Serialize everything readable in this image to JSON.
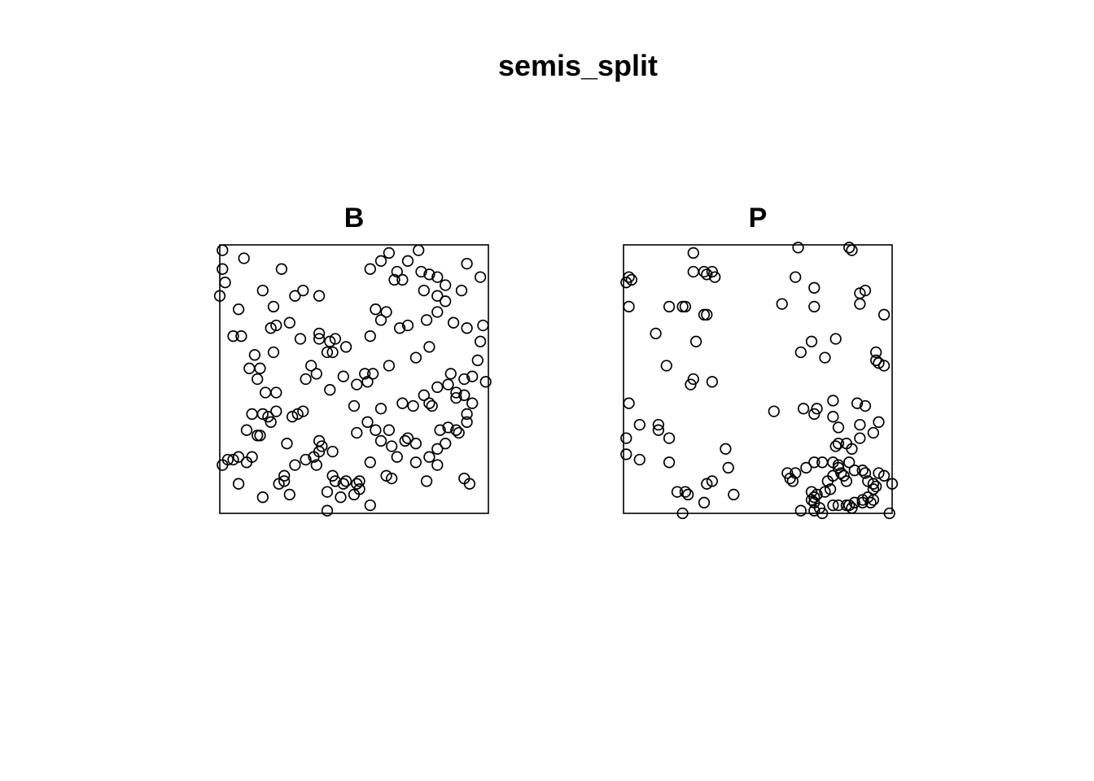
{
  "title": "semis_split",
  "chart_data": {
    "type": "scatter",
    "title": "semis_split",
    "xlim": [
      0,
      100
    ],
    "ylim": [
      0,
      100
    ],
    "axes": false,
    "grid": false,
    "point_style": "open-circle",
    "point_color": "#000000",
    "panels": [
      {
        "name": "B",
        "points": [
          [
            1,
            98
          ],
          [
            1,
            91
          ],
          [
            2,
            86
          ],
          [
            0,
            81
          ],
          [
            7,
            76
          ],
          [
            9,
            95
          ],
          [
            23,
            91
          ],
          [
            16,
            83
          ],
          [
            20,
            77
          ],
          [
            31,
            83
          ],
          [
            28,
            81
          ],
          [
            37,
            81
          ],
          [
            19,
            69
          ],
          [
            21,
            70
          ],
          [
            26,
            71
          ],
          [
            8,
            66
          ],
          [
            5,
            66
          ],
          [
            13,
            59
          ],
          [
            11,
            54
          ],
          [
            15,
            54
          ],
          [
            20,
            60
          ],
          [
            14,
            50
          ],
          [
            17,
            45
          ],
          [
            21,
            45
          ],
          [
            30,
            65
          ],
          [
            37,
            65
          ],
          [
            41,
            64
          ],
          [
            37,
            67
          ],
          [
            40,
            60
          ],
          [
            43,
            65
          ],
          [
            47,
            62
          ],
          [
            34,
            55
          ],
          [
            36,
            52
          ],
          [
            32,
            50
          ],
          [
            42,
            60
          ],
          [
            29,
            37
          ],
          [
            31,
            38
          ],
          [
            21,
            38
          ],
          [
            12,
            37
          ],
          [
            16,
            37
          ],
          [
            15,
            29
          ],
          [
            18,
            36
          ],
          [
            19,
            34
          ],
          [
            14,
            29
          ],
          [
            10,
            31
          ],
          [
            27,
            36
          ],
          [
            25,
            26
          ],
          [
            37,
            27
          ],
          [
            28,
            18
          ],
          [
            37,
            23
          ],
          [
            38,
            25
          ],
          [
            42,
            23
          ],
          [
            36,
            18
          ],
          [
            35,
            21
          ],
          [
            32,
            20
          ],
          [
            24,
            14
          ],
          [
            22,
            11
          ],
          [
            10,
            19
          ],
          [
            7,
            21
          ],
          [
            5,
            20
          ],
          [
            3,
            20
          ],
          [
            1,
            18
          ],
          [
            7,
            11
          ],
          [
            12,
            21
          ],
          [
            16,
            6
          ],
          [
            24,
            12
          ],
          [
            26,
            7
          ],
          [
            40,
            8
          ],
          [
            40,
            1
          ],
          [
            45,
            6
          ],
          [
            43,
            12
          ],
          [
            46,
            11
          ],
          [
            47,
            12
          ],
          [
            51,
            11
          ],
          [
            56,
            3
          ],
          [
            52,
            12
          ],
          [
            56,
            19
          ],
          [
            62,
            14
          ],
          [
            64,
            13
          ],
          [
            50,
            7
          ],
          [
            42,
            14
          ],
          [
            52,
            9
          ],
          [
            66,
            21
          ],
          [
            69,
            27
          ],
          [
            73,
            26
          ],
          [
            70,
            28
          ],
          [
            64,
            25
          ],
          [
            58,
            31
          ],
          [
            60,
            39
          ],
          [
            55,
            34
          ],
          [
            63,
            31
          ],
          [
            60,
            27
          ],
          [
            51,
            30
          ],
          [
            50,
            40
          ],
          [
            41,
            46
          ],
          [
            46,
            51
          ],
          [
            51,
            48
          ],
          [
            57,
            52
          ],
          [
            63,
            55
          ],
          [
            54,
            52
          ],
          [
            55,
            49
          ],
          [
            68,
            41
          ],
          [
            72,
            40
          ],
          [
            78,
            41
          ],
          [
            79,
            40
          ],
          [
            76,
            44
          ],
          [
            81,
            47
          ],
          [
            85,
            48
          ],
          [
            88,
            45
          ],
          [
            86,
            52
          ],
          [
            91,
            50
          ],
          [
            94,
            51
          ],
          [
            94,
            41
          ],
          [
            88,
            43
          ],
          [
            91,
            44
          ],
          [
            92,
            37
          ],
          [
            92,
            34
          ],
          [
            89,
            30
          ],
          [
            88,
            31
          ],
          [
            85,
            32
          ],
          [
            82,
            31
          ],
          [
            84,
            26
          ],
          [
            81,
            24
          ],
          [
            78,
            21
          ],
          [
            81,
            18
          ],
          [
            91,
            13
          ],
          [
            93,
            11
          ],
          [
            73,
            19
          ],
          [
            77,
            12
          ],
          [
            78,
            62
          ],
          [
            73,
            58
          ],
          [
            70,
            70
          ],
          [
            77,
            72
          ],
          [
            81,
            75
          ],
          [
            84,
            79
          ],
          [
            81,
            81
          ],
          [
            76,
            83
          ],
          [
            84,
            85
          ],
          [
            87,
            71
          ],
          [
            92,
            69
          ],
          [
            97,
            64
          ],
          [
            96,
            57
          ],
          [
            99,
            49
          ],
          [
            98,
            70
          ],
          [
            97,
            88
          ],
          [
            92,
            93
          ],
          [
            90,
            83
          ],
          [
            75,
            90
          ],
          [
            78,
            89
          ],
          [
            81,
            88
          ],
          [
            70,
            94
          ],
          [
            65,
            87
          ],
          [
            68,
            87
          ],
          [
            74,
            98
          ],
          [
            66,
            90
          ],
          [
            63,
            97
          ],
          [
            60,
            94
          ],
          [
            56,
            91
          ],
          [
            58,
            76
          ],
          [
            56,
            66
          ],
          [
            60,
            72
          ],
          [
            62,
            75
          ],
          [
            67,
            69
          ]
        ]
      },
      {
        "name": "P",
        "points": [
          [
            26,
            97
          ],
          [
            26,
            90
          ],
          [
            30,
            90
          ],
          [
            33,
            90
          ],
          [
            34,
            88
          ],
          [
            31,
            89
          ],
          [
            2,
            88
          ],
          [
            1,
            86
          ],
          [
            3,
            87
          ],
          [
            2,
            77
          ],
          [
            17,
            77
          ],
          [
            23,
            77
          ],
          [
            31,
            74
          ],
          [
            22,
            77
          ],
          [
            30,
            74
          ],
          [
            12,
            67
          ],
          [
            27,
            64
          ],
          [
            16,
            55
          ],
          [
            26,
            50
          ],
          [
            25,
            48
          ],
          [
            33,
            49
          ],
          [
            65,
            99
          ],
          [
            84,
            99
          ],
          [
            85,
            98
          ],
          [
            64,
            88
          ],
          [
            71,
            84
          ],
          [
            71,
            77
          ],
          [
            59,
            78
          ],
          [
            88,
            82
          ],
          [
            90,
            83
          ],
          [
            97,
            74
          ],
          [
            88,
            78
          ],
          [
            70,
            64
          ],
          [
            79,
            65
          ],
          [
            66,
            60
          ],
          [
            75,
            58
          ],
          [
            94,
            60
          ],
          [
            94,
            57
          ],
          [
            95,
            56
          ],
          [
            97,
            55
          ],
          [
            2,
            41
          ],
          [
            6,
            33
          ],
          [
            13,
            33
          ],
          [
            13,
            31
          ],
          [
            17,
            28
          ],
          [
            1,
            28
          ],
          [
            1,
            22
          ],
          [
            6,
            20
          ],
          [
            17,
            19
          ],
          [
            56,
            38
          ],
          [
            67,
            39
          ],
          [
            71,
            37
          ],
          [
            72,
            39
          ],
          [
            78,
            42
          ],
          [
            87,
            41
          ],
          [
            90,
            40
          ],
          [
            78,
            36
          ],
          [
            88,
            33
          ],
          [
            95,
            34
          ],
          [
            93,
            30
          ],
          [
            88,
            28
          ],
          [
            80,
            32
          ],
          [
            79,
            25
          ],
          [
            83,
            26
          ],
          [
            78,
            19
          ],
          [
            80,
            17
          ],
          [
            74,
            19
          ],
          [
            71,
            19
          ],
          [
            68,
            17
          ],
          [
            61,
            15
          ],
          [
            64,
            15
          ],
          [
            62,
            13
          ],
          [
            63,
            12
          ],
          [
            85,
            24
          ],
          [
            80,
            26
          ],
          [
            80,
            18
          ],
          [
            84,
            19
          ],
          [
            86,
            16
          ],
          [
            81,
            15
          ],
          [
            76,
            12
          ],
          [
            78,
            14
          ],
          [
            82,
            14
          ],
          [
            83,
            12
          ],
          [
            89,
            16
          ],
          [
            90,
            15
          ],
          [
            97,
            14
          ],
          [
            95,
            15
          ],
          [
            93,
            11
          ],
          [
            91,
            12
          ],
          [
            94,
            10
          ],
          [
            100,
            11
          ],
          [
            93,
            9
          ],
          [
            91,
            6
          ],
          [
            92,
            4
          ],
          [
            89,
            4
          ],
          [
            83,
            3
          ],
          [
            80,
            3
          ],
          [
            78,
            3
          ],
          [
            70,
            5
          ],
          [
            71,
            6
          ],
          [
            72,
            7
          ],
          [
            71,
            4
          ],
          [
            73,
            2
          ],
          [
            71,
            1
          ],
          [
            74,
            0
          ],
          [
            66,
            1
          ],
          [
            70,
            8
          ],
          [
            75,
            8
          ],
          [
            77,
            9
          ],
          [
            85,
            2
          ],
          [
            84,
            3
          ],
          [
            86,
            4
          ],
          [
            89,
            5
          ],
          [
            93,
            5
          ],
          [
            99,
            0
          ],
          [
            38,
            24
          ],
          [
            39,
            17
          ],
          [
            33,
            12
          ],
          [
            31,
            11
          ],
          [
            41,
            7
          ],
          [
            23,
            8
          ],
          [
            24,
            7
          ],
          [
            20,
            8
          ],
          [
            22,
            0
          ],
          [
            30,
            4
          ]
        ]
      }
    ]
  }
}
